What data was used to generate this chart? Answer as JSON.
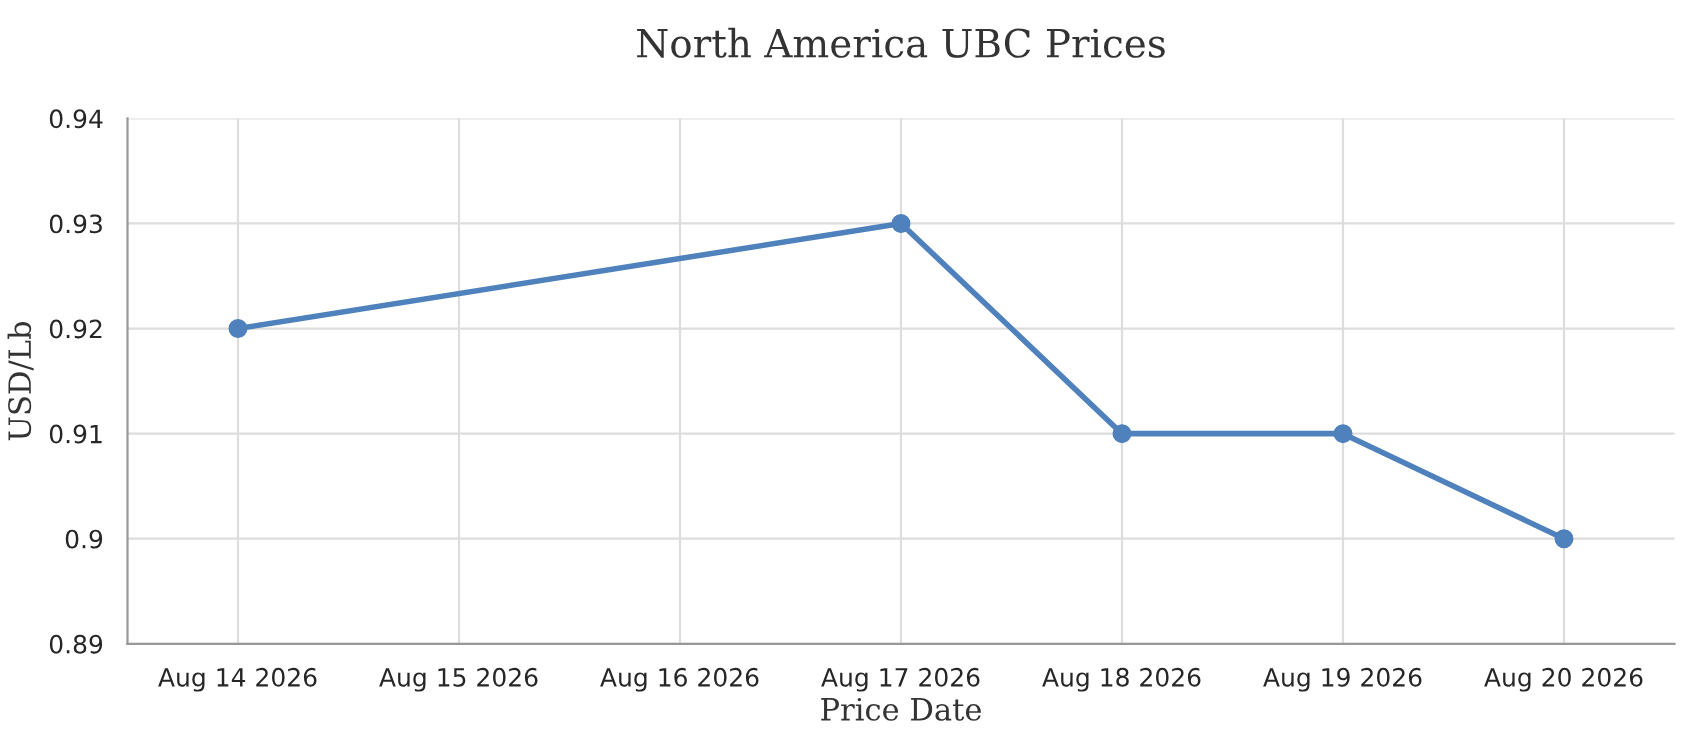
{
  "chart_data": {
    "type": "line",
    "title": "North America UBC Prices",
    "xlabel": "Price Date",
    "ylabel": "USD/Lb",
    "x": [
      "2026-08-14",
      "2026-08-17",
      "2026-08-18",
      "2026-08-19",
      "2026-08-20"
    ],
    "series": [
      {
        "color": "#4f81bc",
        "values": [
          0.92,
          0.93,
          0.91,
          0.91,
          0.9
        ]
      }
    ],
    "xlim": [
      "2026-08-13T12:00",
      "2026-08-20T12:00"
    ],
    "xticks": [
      {
        "value": "2026-08-14",
        "label": "Aug 14 2026"
      },
      {
        "value": "2026-08-15",
        "label": "Aug 15 2026"
      },
      {
        "value": "2026-08-16",
        "label": "Aug 16 2026"
      },
      {
        "value": "2026-08-17",
        "label": "Aug 17 2026"
      },
      {
        "value": "2026-08-18",
        "label": "Aug 18 2026"
      },
      {
        "value": "2026-08-19",
        "label": "Aug 19 2026"
      },
      {
        "value": "2026-08-20",
        "label": "Aug 20 2026"
      }
    ],
    "ylim": [
      0.89,
      0.94
    ],
    "yticks": [
      0.89,
      0.9,
      0.91,
      0.92,
      0.93,
      0.94
    ],
    "grid": true,
    "marker": "circle",
    "line_style": "solid"
  }
}
